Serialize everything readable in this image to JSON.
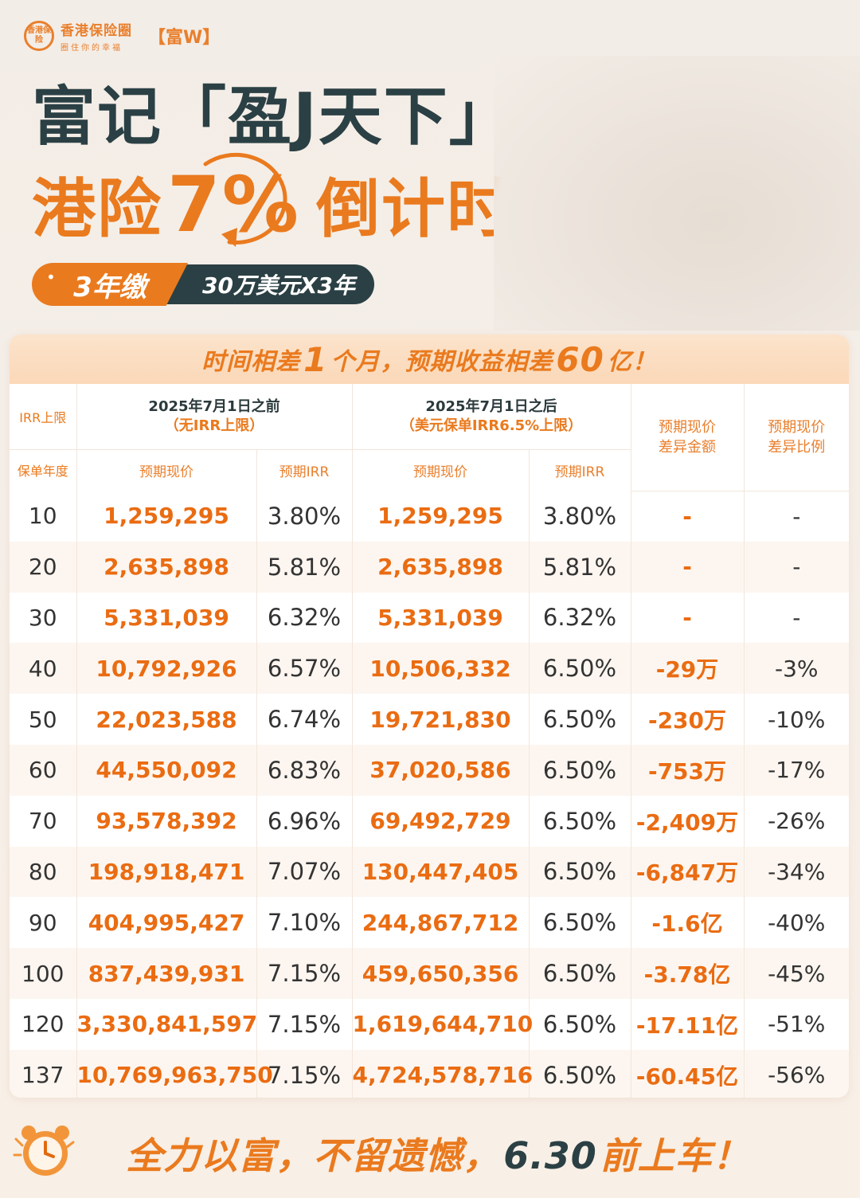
{
  "header": {
    "logo_circle": "香港保险",
    "logo_name": "香港保险圈",
    "logo_slogan": "圈住你的幸福",
    "logo_tag": "【富W】",
    "title_line1": "富记「盈J天下」",
    "title_line2_a": "港险",
    "title_line2_pct": "7%",
    "title_line2_b": "倒计时",
    "pill_left": "3年缴",
    "pill_right": "30万美元X3年"
  },
  "banner": {
    "pre": "时间相差",
    "num1": "1",
    "mid": "个月，预期收益相差",
    "num2": "60",
    "post": "亿！"
  },
  "table": {
    "irr_cap_label": "IRR上限",
    "year_label": "保单年度",
    "before_date": "2025年7月1日之前",
    "before_note": "（无IRR上限）",
    "after_date": "2025年7月1日之后",
    "after_note": "（美元保单IRR6.5%上限）",
    "col_value": "预期现价",
    "col_irr": "预期IRR",
    "diff_amount_l1": "预期现价",
    "diff_amount_l2": "差异金额",
    "diff_ratio_l1": "预期现价",
    "diff_ratio_l2": "差异比例",
    "rows": [
      {
        "year": "10",
        "before_value": "1,259,295",
        "before_irr": "3.80%",
        "after_value": "1,259,295",
        "after_irr": "3.80%",
        "diff": "-",
        "ratio": "-"
      },
      {
        "year": "20",
        "before_value": "2,635,898",
        "before_irr": "5.81%",
        "after_value": "2,635,898",
        "after_irr": "5.81%",
        "diff": "-",
        "ratio": "-"
      },
      {
        "year": "30",
        "before_value": "5,331,039",
        "before_irr": "6.32%",
        "after_value": "5,331,039",
        "after_irr": "6.32%",
        "diff": "-",
        "ratio": "-"
      },
      {
        "year": "40",
        "before_value": "10,792,926",
        "before_irr": "6.57%",
        "after_value": "10,506,332",
        "after_irr": "6.50%",
        "diff": "-29万",
        "ratio": "-3%"
      },
      {
        "year": "50",
        "before_value": "22,023,588",
        "before_irr": "6.74%",
        "after_value": "19,721,830",
        "after_irr": "6.50%",
        "diff": "-230万",
        "ratio": "-10%"
      },
      {
        "year": "60",
        "before_value": "44,550,092",
        "before_irr": "6.83%",
        "after_value": "37,020,586",
        "after_irr": "6.50%",
        "diff": "-753万",
        "ratio": "-17%"
      },
      {
        "year": "70",
        "before_value": "93,578,392",
        "before_irr": "6.96%",
        "after_value": "69,492,729",
        "after_irr": "6.50%",
        "diff": "-2,409万",
        "ratio": "-26%"
      },
      {
        "year": "80",
        "before_value": "198,918,471",
        "before_irr": "7.07%",
        "after_value": "130,447,405",
        "after_irr": "6.50%",
        "diff": "-6,847万",
        "ratio": "-34%"
      },
      {
        "year": "90",
        "before_value": "404,995,427",
        "before_irr": "7.10%",
        "after_value": "244,867,712",
        "after_irr": "6.50%",
        "diff": "-1.6亿",
        "ratio": "-40%"
      },
      {
        "year": "100",
        "before_value": "837,439,931",
        "before_irr": "7.15%",
        "after_value": "459,650,356",
        "after_irr": "6.50%",
        "diff": "-3.78亿",
        "ratio": "-45%"
      },
      {
        "year": "120",
        "before_value": "3,330,841,597",
        "before_irr": "7.15%",
        "after_value": "1,619,644,710",
        "after_irr": "6.50%",
        "diff": "-17.11亿",
        "ratio": "-51%"
      },
      {
        "year": "137",
        "before_value": "10,769,963,750",
        "before_irr": "7.15%",
        "after_value": "4,724,578,716",
        "after_irr": "6.50%",
        "diff": "-60.45亿",
        "ratio": "-56%"
      }
    ]
  },
  "footer": {
    "text_a": "全力以富，不留遗憾，",
    "date": "6.30",
    "text_b": "前上车！"
  },
  "colors": {
    "accent": "#ea7a1e",
    "dark": "#2b4044",
    "banner_bg": "#fbe3cb"
  }
}
